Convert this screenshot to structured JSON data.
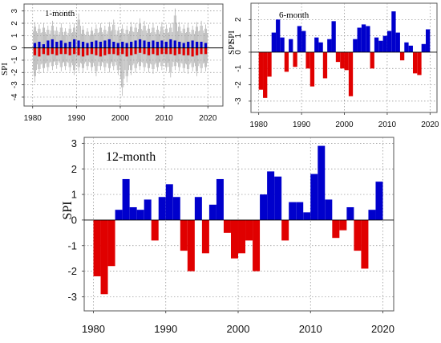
{
  "chart_data": [
    {
      "type": "area",
      "title": "1-month",
      "ylabel": "SPI",
      "xlabel": "",
      "xlim": [
        1979.5,
        2020.5
      ],
      "ylim": [
        -4.2,
        3.5
      ],
      "xticks": [
        1980,
        1990,
        2000,
        2010,
        2020
      ],
      "xtick_labels": [
        "1980",
        "1990",
        "2000",
        "2010",
        "2020"
      ],
      "yticks": [
        -4,
        -3,
        -2,
        -1,
        0,
        1,
        2,
        3
      ],
      "ytick_labels": [
        "-4",
        "-3",
        "-2",
        "-1",
        "0",
        "1",
        "2",
        "3"
      ],
      "grid": true,
      "colors": {
        "positive": "#0000cc",
        "negative": "#e00000",
        "spike": "#9a9a9a"
      },
      "x": [
        1980.5,
        1981.5,
        1982.5,
        1983.5,
        1984.5,
        1985.5,
        1986.5,
        1987.5,
        1988.5,
        1989.5,
        1990.5,
        1991.5,
        1992.5,
        1993.5,
        1994.5,
        1995.5,
        1996.5,
        1997.5,
        1998.5,
        1999.5,
        2000.5,
        2001.5,
        2002.5,
        2003.5,
        2004.5,
        2005.5,
        2006.5,
        2007.5,
        2008.5,
        2009.5,
        2010.5,
        2011.5,
        2012.5,
        2013.5,
        2014.5,
        2015.5,
        2016.5,
        2017.5,
        2018.5,
        2019.5
      ],
      "pos_core": [
        0.4,
        0.5,
        0.3,
        0.6,
        0.7,
        0.5,
        0.6,
        0.4,
        0.5,
        0.7,
        0.6,
        0.5,
        0.4,
        0.5,
        0.6,
        0.5,
        0.6,
        0.7,
        0.5,
        0.4,
        0.5,
        0.4,
        0.5,
        0.6,
        0.7,
        0.6,
        0.5,
        0.6,
        0.5,
        0.6,
        0.5,
        0.7,
        0.6,
        0.5,
        0.4,
        0.5,
        0.6,
        0.5,
        0.5,
        0.4
      ],
      "neg_core": [
        -0.6,
        -0.7,
        -0.5,
        -0.6,
        -0.5,
        -0.6,
        -0.5,
        -0.5,
        -0.6,
        -0.5,
        -0.6,
        -0.7,
        -0.6,
        -0.5,
        -0.6,
        -0.7,
        -0.6,
        -0.5,
        -0.5,
        -0.6,
        -0.5,
        -0.7,
        -0.6,
        -0.5,
        -0.4,
        -0.5,
        -0.6,
        -0.5,
        -0.6,
        -0.5,
        -0.5,
        -0.5,
        -0.6,
        -0.5,
        -0.6,
        -0.6,
        -0.7,
        -0.6,
        -0.5,
        -0.5
      ],
      "spike_max": [
        2.1,
        1.9,
        2.0,
        1.8,
        2.2,
        1.7,
        2.0,
        1.6,
        1.9,
        2.0,
        2.8,
        1.8,
        1.6,
        1.7,
        1.9,
        2.0,
        1.8,
        2.1,
        2.3,
        1.7,
        1.9,
        1.8,
        2.1,
        2.0,
        2.4,
        2.2,
        1.9,
        2.0,
        1.8,
        2.1,
        1.9,
        2.0,
        3.2,
        2.1,
        1.9,
        2.0,
        1.8,
        2.1,
        2.2,
        1.9
      ],
      "spike_min": [
        -2.8,
        -2.1,
        -2.0,
        -1.9,
        -1.8,
        -1.7,
        -1.9,
        -1.8,
        -1.9,
        -2.2,
        -1.9,
        -2.0,
        -1.8,
        -1.9,
        -2.3,
        -1.8,
        -1.9,
        -2.0,
        -1.8,
        -2.2,
        -3.9,
        -2.8,
        -2.2,
        -2.0,
        -1.8,
        -1.9,
        -2.0,
        -2.1,
        -1.9,
        -1.8,
        -1.9,
        -2.4,
        -1.8,
        -1.9,
        -2.0,
        -2.1,
        -1.9,
        -2.3,
        -2.0,
        -1.9
      ]
    },
    {
      "type": "area",
      "title": "6-month",
      "ylabel": "SPI",
      "ylabel_duplicate": "SPI",
      "xlabel": "",
      "xlim": [
        1979.5,
        2020.5
      ],
      "ylim": [
        -3.3,
        3.0
      ],
      "xticks": [
        1980,
        1990,
        2000,
        2010,
        2020
      ],
      "xtick_labels": [
        "1980",
        "1990",
        "2000",
        "2010",
        "2020"
      ],
      "yticks": [
        -3,
        -2,
        -1,
        0,
        1,
        2
      ],
      "ytick_labels": [
        "-3",
        "-2",
        "-1",
        "0",
        "1",
        "2"
      ],
      "grid": true,
      "colors": {
        "positive": "#0000cc",
        "negative": "#e00000"
      },
      "x": [
        1980.5,
        1981.5,
        1982.5,
        1983.5,
        1984.5,
        1985.5,
        1986.5,
        1987.5,
        1988.5,
        1989.5,
        1990.5,
        1991.5,
        1992.5,
        1993.5,
        1994.5,
        1995.5,
        1996.5,
        1997.5,
        1998.5,
        1999.5,
        2000.5,
        2001.5,
        2002.5,
        2003.5,
        2004.5,
        2005.5,
        2006.5,
        2007.5,
        2008.5,
        2009.5,
        2010.5,
        2011.5,
        2012.5,
        2013.5,
        2014.5,
        2015.5,
        2016.5,
        2017.5,
        2018.5,
        2019.5
      ],
      "values": [
        -2.3,
        -2.8,
        -1.5,
        1.2,
        2.0,
        0.9,
        -1.2,
        0.8,
        -0.9,
        1.6,
        1.3,
        -1.0,
        -2.1,
        0.9,
        0.6,
        -1.6,
        0.8,
        1.9,
        -0.6,
        -1.0,
        -1.1,
        -2.7,
        0.8,
        1.5,
        1.7,
        1.6,
        -1.0,
        0.9,
        0.7,
        1.0,
        1.3,
        2.5,
        1.2,
        -0.5,
        0.6,
        0.4,
        -1.3,
        -1.4,
        0.5,
        1.4
      ]
    },
    {
      "type": "area",
      "title": "12-month",
      "ylabel": "SPI",
      "xlabel": "",
      "xlim": [
        1979.5,
        2020.5
      ],
      "ylim": [
        -3.3,
        3.2
      ],
      "xticks": [
        1980,
        1990,
        2000,
        2010,
        2020
      ],
      "xtick_labels": [
        "1980",
        "1990",
        "2000",
        "2010",
        "2020"
      ],
      "yticks": [
        -3,
        -2,
        -1,
        0,
        1,
        2,
        3
      ],
      "ytick_labels": [
        "-3",
        "-2",
        "-1",
        "0",
        "1",
        "2",
        "3"
      ],
      "grid": true,
      "colors": {
        "positive": "#0000cc",
        "negative": "#e00000"
      },
      "x": [
        1980.5,
        1981.5,
        1982.5,
        1983.5,
        1984.5,
        1985.5,
        1986.5,
        1987.5,
        1988.5,
        1989.5,
        1990.5,
        1991.5,
        1992.5,
        1993.5,
        1994.5,
        1995.5,
        1996.5,
        1997.5,
        1998.5,
        1999.5,
        2000.5,
        2001.5,
        2002.5,
        2003.5,
        2004.5,
        2005.5,
        2006.5,
        2007.5,
        2008.5,
        2009.5,
        2010.5,
        2011.5,
        2012.5,
        2013.5,
        2014.5,
        2015.5,
        2016.5,
        2017.5,
        2018.5,
        2019.5
      ],
      "values": [
        -2.2,
        -2.9,
        -1.8,
        0.4,
        1.6,
        0.5,
        0.4,
        0.8,
        -0.8,
        0.9,
        1.4,
        0.9,
        -1.2,
        -2.0,
        0.9,
        -1.3,
        0.6,
        1.6,
        -0.5,
        -1.5,
        -1.3,
        -0.8,
        -2.0,
        1.0,
        1.9,
        1.7,
        -0.8,
        0.7,
        0.7,
        0.3,
        1.8,
        2.9,
        0.8,
        -0.7,
        -0.4,
        0.5,
        -1.2,
        -1.9,
        0.4,
        1.5
      ]
    }
  ]
}
